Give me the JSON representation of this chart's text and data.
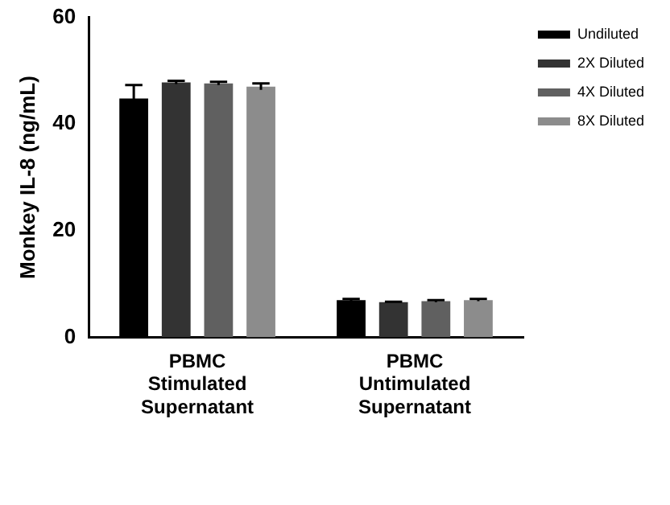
{
  "chart_data": {
    "type": "bar",
    "ylabel": "Monkey IL-8 (ng/mL)",
    "categories": [
      "PBMC Stimulated Supernatant",
      "PBMC Untimulated Supernatant"
    ],
    "series": [
      {
        "name": "Undiluted",
        "color": "#000000",
        "values": [
          44.8,
          7.0
        ],
        "errors": [
          2.5,
          0.2
        ]
      },
      {
        "name": "2X Diluted",
        "color": "#333333",
        "values": [
          47.8,
          6.6
        ],
        "errors": [
          0.3,
          0.1
        ]
      },
      {
        "name": "4X Diluted",
        "color": "#606060",
        "values": [
          47.6,
          6.8
        ],
        "errors": [
          0.3,
          0.2
        ]
      },
      {
        "name": "8X Diluted",
        "color": "#8c8c8c",
        "values": [
          47.0,
          7.0
        ],
        "errors": [
          0.6,
          0.2
        ]
      }
    ],
    "ylim": [
      0,
      60
    ],
    "yticks": [
      0,
      20,
      40,
      60
    ],
    "grid": false,
    "legend": "top right"
  }
}
